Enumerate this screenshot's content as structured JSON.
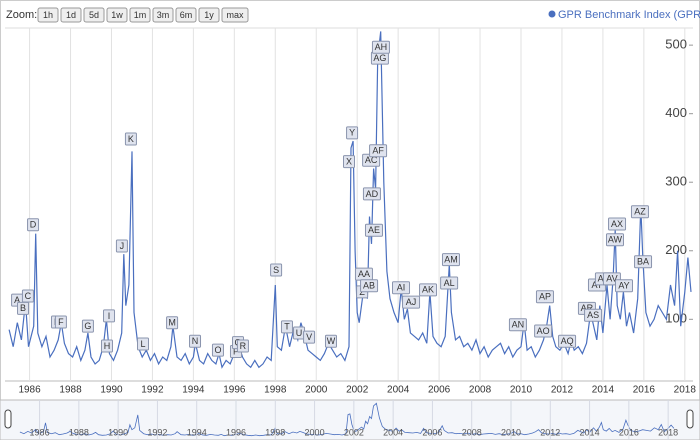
{
  "chart_data": {
    "type": "line",
    "zoom": {
      "label": "Zoom:",
      "buttons": [
        "1h",
        "1d",
        "5d",
        "1w",
        "1m",
        "3m",
        "6m",
        "1y",
        "max"
      ]
    },
    "xlim": [
      1984.8,
      2018.4
    ],
    "ylim": [
      10,
      525
    ],
    "xticks": [
      1986,
      1988,
      1990,
      1992,
      1994,
      1996,
      1998,
      2000,
      2002,
      2004,
      2006,
      2008,
      2010,
      2012,
      2014,
      2016,
      2018
    ],
    "yticks": [
      100,
      200,
      300,
      400,
      500
    ],
    "x": [
      1985.0,
      1985.2,
      1985.4,
      1985.6,
      1985.8,
      1985.95,
      1986.2,
      1986.3,
      1986.4,
      1986.6,
      1986.8,
      1987.0,
      1987.2,
      1987.4,
      1987.55,
      1987.7,
      1987.9,
      1988.1,
      1988.3,
      1988.5,
      1988.7,
      1988.85,
      1989.0,
      1989.2,
      1989.4,
      1989.6,
      1989.75,
      1989.9,
      1990.1,
      1990.3,
      1990.5,
      1990.6,
      1990.7,
      1990.85,
      1991.0,
      1991.1,
      1991.3,
      1991.5,
      1991.7,
      1991.9,
      1992.1,
      1992.3,
      1992.5,
      1992.7,
      1992.9,
      1993.0,
      1993.2,
      1993.4,
      1993.6,
      1993.8,
      1994.0,
      1994.1,
      1994.3,
      1994.5,
      1994.7,
      1994.9,
      1995.1,
      1995.25,
      1995.4,
      1995.6,
      1995.8,
      1996.0,
      1996.2,
      1996.4,
      1996.6,
      1996.8,
      1997.0,
      1997.2,
      1997.4,
      1997.6,
      1997.8,
      1998.0,
      1998.1,
      1998.3,
      1998.5,
      1998.7,
      1998.9,
      1999.1,
      1999.25,
      1999.4,
      1999.6,
      1999.8,
      2000.0,
      2000.2,
      2000.4,
      2000.6,
      2000.8,
      2001.0,
      2001.2,
      2001.4,
      2001.6,
      2001.7,
      2001.8,
      2001.9,
      2002.0,
      2002.1,
      2002.3,
      2002.4,
      2002.5,
      2002.6,
      2002.7,
      2002.8,
      2002.9,
      2003.0,
      2003.15,
      2003.3,
      2003.45,
      2003.6,
      2003.8,
      2004.0,
      2004.15,
      2004.3,
      2004.45,
      2004.6,
      2004.8,
      2005.0,
      2005.2,
      2005.4,
      2005.55,
      2005.7,
      2005.9,
      2006.1,
      2006.3,
      2006.5,
      2006.6,
      2006.8,
      2007.0,
      2007.2,
      2007.4,
      2007.6,
      2007.8,
      2008.0,
      2008.2,
      2008.4,
      2008.6,
      2008.8,
      2009.0,
      2009.2,
      2009.4,
      2009.6,
      2009.8,
      2010.0,
      2010.15,
      2010.3,
      2010.5,
      2010.7,
      2010.9,
      2011.1,
      2011.25,
      2011.4,
      2011.55,
      2011.7,
      2011.9,
      2012.1,
      2012.3,
      2012.45,
      2012.6,
      2012.8,
      2013.0,
      2013.2,
      2013.4,
      2013.55,
      2013.7,
      2013.85,
      2014.0,
      2014.2,
      2014.35,
      2014.5,
      2014.6,
      2014.7,
      2014.85,
      2015.0,
      2015.15,
      2015.3,
      2015.5,
      2015.7,
      2015.85,
      2015.95,
      2016.1,
      2016.3,
      2016.5,
      2016.7,
      2016.9,
      2017.1,
      2017.3,
      2017.5,
      2017.65,
      2017.8,
      2018.0,
      2018.15,
      2018.3
    ],
    "series": [
      {
        "name": "GPR Benchmark Index (GPR)",
        "color": "#4a6fbf",
        "values": [
          85,
          60,
          95,
          70,
          125,
          60,
          90,
          225,
          80,
          60,
          75,
          45,
          55,
          70,
          95,
          65,
          50,
          45,
          60,
          40,
          55,
          80,
          45,
          35,
          40,
          60,
          100,
          50,
          40,
          55,
          80,
          195,
          120,
          150,
          345,
          110,
          60,
          45,
          55,
          40,
          50,
          35,
          45,
          40,
          60,
          90,
          45,
          40,
          50,
          35,
          45,
          65,
          40,
          35,
          50,
          40,
          35,
          50,
          30,
          40,
          35,
          50,
          65,
          45,
          35,
          30,
          40,
          30,
          35,
          45,
          40,
          150,
          60,
          55,
          90,
          60,
          85,
          70,
          95,
          80,
          55,
          50,
          45,
          40,
          50,
          65,
          55,
          45,
          50,
          40,
          60,
          350,
          360,
          200,
          110,
          95,
          140,
          160,
          130,
          250,
          210,
          320,
          290,
          480,
          520,
          300,
          170,
          130,
          110,
          95,
          145,
          100,
          115,
          80,
          75,
          70,
          80,
          65,
          140,
          75,
          65,
          60,
          75,
          180,
          110,
          70,
          75,
          60,
          65,
          55,
          70,
          50,
          60,
          45,
          55,
          60,
          65,
          50,
          60,
          45,
          55,
          60,
          95,
          55,
          60,
          45,
          55,
          70,
          90,
          120,
          75,
          60,
          55,
          65,
          50,
          70,
          55,
          60,
          50,
          65,
          110,
          90,
          70,
          120,
          80,
          150,
          100,
          160,
          230,
          120,
          100,
          140,
          90,
          110,
          80,
          130,
          265,
          190,
          110,
          90,
          100,
          120,
          110,
          100,
          150,
          120,
          200,
          90,
          140,
          190,
          140
        ]
      }
    ],
    "annotations": [
      {
        "label": "A",
        "x": 1985.39,
        "y": 128
      },
      {
        "label": "B",
        "x": 1985.68,
        "y": 116
      },
      {
        "label": "C",
        "x": 1985.92,
        "y": 134
      },
      {
        "label": "D",
        "x": 1986.17,
        "y": 238
      },
      {
        "label": "E",
        "x": 1987.34,
        "y": 96
      },
      {
        "label": "F",
        "x": 1987.53,
        "y": 96
      },
      {
        "label": "G",
        "x": 1988.85,
        "y": 90
      },
      {
        "label": "H",
        "x": 1989.78,
        "y": 61
      },
      {
        "label": "I",
        "x": 1989.88,
        "y": 105
      },
      {
        "label": "J",
        "x": 1990.51,
        "y": 207
      },
      {
        "label": "K",
        "x": 1990.95,
        "y": 363
      },
      {
        "label": "L",
        "x": 1991.54,
        "y": 64
      },
      {
        "label": "M",
        "x": 1992.96,
        "y": 95
      },
      {
        "label": "N",
        "x": 1994.08,
        "y": 68
      },
      {
        "label": "O",
        "x": 1995.2,
        "y": 55
      },
      {
        "label": "P",
        "x": 1996.08,
        "y": 53
      },
      {
        "label": "Q",
        "x": 1996.18,
        "y": 66
      },
      {
        "label": "R",
        "x": 1996.42,
        "y": 61
      },
      {
        "label": "S",
        "x": 1998.04,
        "y": 172
      },
      {
        "label": "T",
        "x": 1998.57,
        "y": 89
      },
      {
        "label": "U",
        "x": 1999.16,
        "y": 80
      },
      {
        "label": "V",
        "x": 1999.65,
        "y": 74
      },
      {
        "label": "W",
        "x": 2000.72,
        "y": 68
      },
      {
        "label": "X",
        "x": 2001.6,
        "y": 330
      },
      {
        "label": "Y",
        "x": 2001.75,
        "y": 372
      },
      {
        "label": "Z",
        "x": 2002.24,
        "y": 140
      },
      {
        "label": "AA",
        "x": 2002.33,
        "y": 166
      },
      {
        "label": "AB",
        "x": 2002.58,
        "y": 149
      },
      {
        "label": "AC",
        "x": 2002.68,
        "y": 332
      },
      {
        "label": "AD",
        "x": 2002.72,
        "y": 283
      },
      {
        "label": "AE",
        "x": 2002.82,
        "y": 230
      },
      {
        "label": "AF",
        "x": 2003.02,
        "y": 346
      },
      {
        "label": "AG",
        "x": 2003.11,
        "y": 481
      },
      {
        "label": "AH",
        "x": 2003.16,
        "y": 497
      },
      {
        "label": "AI",
        "x": 2004.14,
        "y": 146
      },
      {
        "label": "AJ",
        "x": 2004.63,
        "y": 125
      },
      {
        "label": "AK",
        "x": 2005.46,
        "y": 143
      },
      {
        "label": "AL",
        "x": 2006.49,
        "y": 153
      },
      {
        "label": "AM",
        "x": 2006.58,
        "y": 187
      },
      {
        "label": "AN",
        "x": 2009.85,
        "y": 92
      },
      {
        "label": "AO",
        "x": 2011.08,
        "y": 83
      },
      {
        "label": "AP",
        "x": 2011.17,
        "y": 133
      },
      {
        "label": "AQ",
        "x": 2012.25,
        "y": 68
      },
      {
        "label": "AR",
        "x": 2013.22,
        "y": 116
      },
      {
        "label": "AS",
        "x": 2013.52,
        "y": 106
      },
      {
        "label": "AT",
        "x": 2013.71,
        "y": 150
      },
      {
        "label": "AU",
        "x": 2014.05,
        "y": 159
      },
      {
        "label": "AV",
        "x": 2014.44,
        "y": 159
      },
      {
        "label": "AW",
        "x": 2014.59,
        "y": 216
      },
      {
        "label": "AX",
        "x": 2014.69,
        "y": 239
      },
      {
        "label": "AY",
        "x": 2015.03,
        "y": 149
      },
      {
        "label": "AZ",
        "x": 2015.81,
        "y": 257
      },
      {
        "label": "BA",
        "x": 2015.96,
        "y": 184
      }
    ]
  }
}
